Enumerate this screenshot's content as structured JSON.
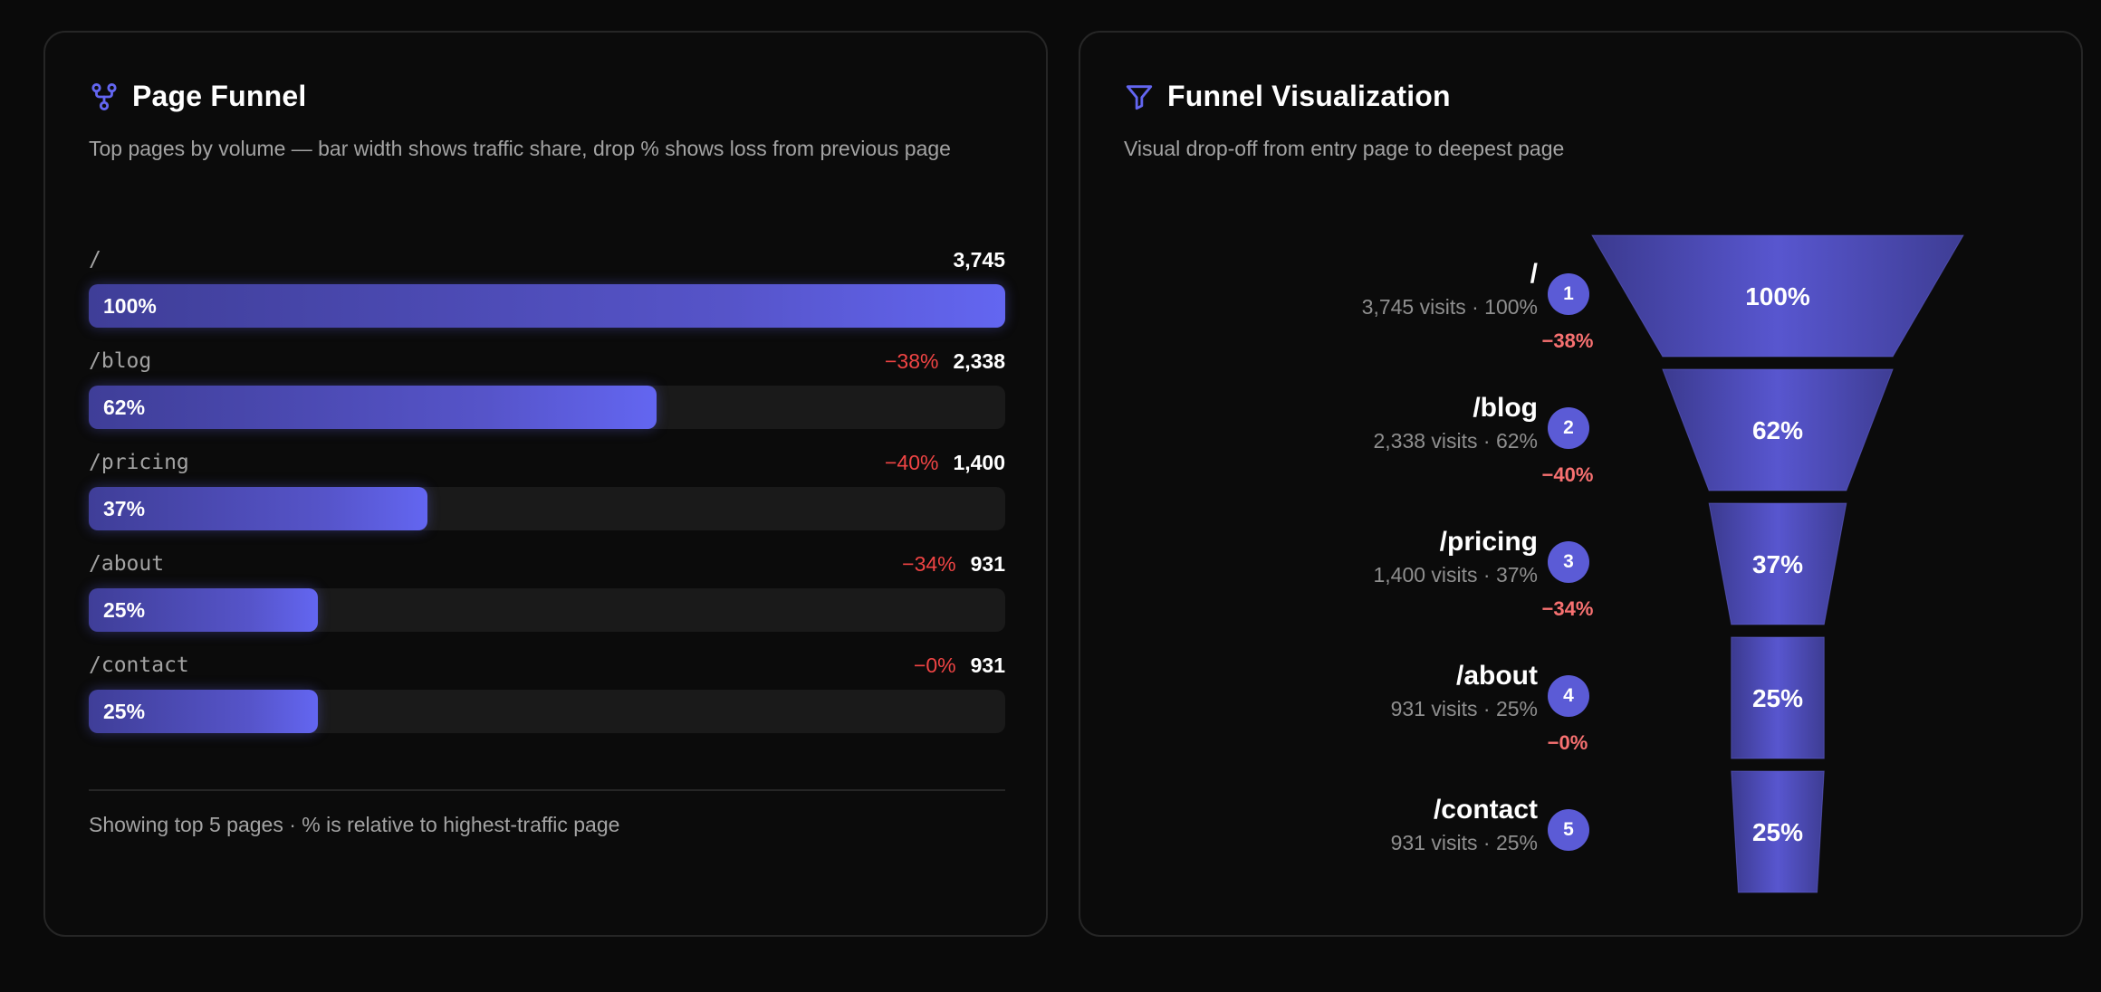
{
  "left": {
    "title": "Page Funnel",
    "description": "Top pages by volume — bar width shows traffic share, drop % shows loss from previous page",
    "footer": "Showing top 5 pages · % is relative to highest-traffic page",
    "rows": [
      {
        "path": "/",
        "drop": "",
        "count": "3,745",
        "pct_label": "100%",
        "share": 1.0
      },
      {
        "path": "/blog",
        "drop": "−38%",
        "count": "2,338",
        "pct_label": "62%",
        "share": 0.62
      },
      {
        "path": "/pricing",
        "drop": "−40%",
        "count": "1,400",
        "pct_label": "37%",
        "share": 0.37
      },
      {
        "path": "/about",
        "drop": "−34%",
        "count": "931",
        "pct_label": "25%",
        "share": 0.25
      },
      {
        "path": "/contact",
        "drop": "−0%",
        "count": "931",
        "pct_label": "25%",
        "share": 0.25
      }
    ]
  },
  "right": {
    "title": "Funnel Visualization",
    "description": "Visual drop-off from entry page to deepest page",
    "stages": [
      {
        "num": "1",
        "path": "/",
        "meta": "3,745 visits · 100%",
        "pct_label": "100%",
        "share": 1.0,
        "drop_after": "−38%"
      },
      {
        "num": "2",
        "path": "/blog",
        "meta": "2,338 visits · 62%",
        "pct_label": "62%",
        "share": 0.62,
        "drop_after": "−40%"
      },
      {
        "num": "3",
        "path": "/pricing",
        "meta": "1,400 visits · 37%",
        "pct_label": "37%",
        "share": 0.37,
        "drop_after": "−34%"
      },
      {
        "num": "4",
        "path": "/about",
        "meta": "931 visits · 25%",
        "pct_label": "25%",
        "share": 0.25,
        "drop_after": "−0%"
      },
      {
        "num": "5",
        "path": "/contact",
        "meta": "931 visits · 25%",
        "pct_label": "25%",
        "share": 0.25,
        "drop_after": ""
      }
    ]
  },
  "colors": {
    "accent": "#6366f1",
    "drop": "#ef4444",
    "muted": "#a3a3a3",
    "background": "#0a0a0a"
  },
  "icons": {
    "left": "funnel-branch-icon",
    "right": "filter-icon"
  }
}
